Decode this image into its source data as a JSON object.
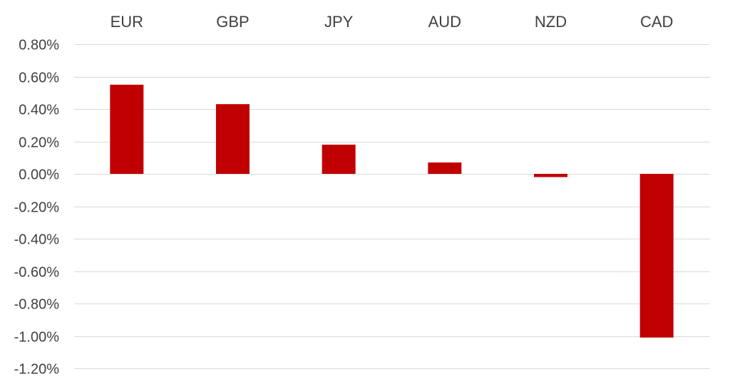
{
  "chart_data": {
    "type": "bar",
    "categories": [
      "EUR",
      "GBP",
      "JPY",
      "AUD",
      "NZD",
      "CAD"
    ],
    "values": [
      0.55,
      0.43,
      0.18,
      0.07,
      -0.02,
      -1.01
    ],
    "title": "",
    "xlabel": "",
    "ylabel": "",
    "ylim": [
      -1.2,
      0.8
    ],
    "y_ticks": [
      0.8,
      0.6,
      0.4,
      0.2,
      0.0,
      -0.2,
      -0.4,
      -0.6,
      -0.8,
      -1.0,
      -1.2
    ],
    "y_tick_labels": [
      "0.80%",
      "0.60%",
      "0.40%",
      "0.20%",
      "0.00%",
      "-0.20%",
      "-0.40%",
      "-0.60%",
      "-0.80%",
      "-1.00%",
      "-1.20%"
    ],
    "category_label_position": "top",
    "grid": true,
    "legend": "none",
    "bar_color": "#c00000",
    "grid_color": "#d9d9d9",
    "text_color": "#404040"
  }
}
